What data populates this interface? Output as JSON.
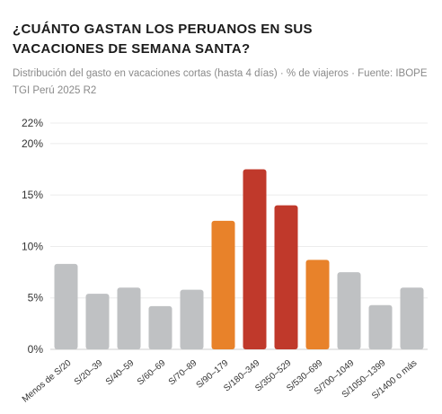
{
  "chart_data": {
    "type": "bar",
    "title": "¿CUÁNTO GASTAN LOS PERUANOS EN SUS VACACIONES DE SEMANA SANTA?",
    "subtitle": "Distribución del gasto en vacaciones cortas (hasta 4 días) · % de viajeros · Fuente: IBOPE TGI Perú 2025 R2",
    "categories": [
      "Menos de S/20",
      "S/20–39",
      "S/40–59",
      "S/60–69",
      "S/70–89",
      "S/90–179",
      "S/180–349",
      "S/350–529",
      "S/530–699",
      "S/700–1049",
      "S/1050–1399",
      "S/1400 o más"
    ],
    "values": [
      8.3,
      5.4,
      6.0,
      4.2,
      5.8,
      12.5,
      17.5,
      14.0,
      8.7,
      7.5,
      4.3,
      6.0
    ],
    "colors": [
      "#bfc1c3",
      "#bfc1c3",
      "#bfc1c3",
      "#bfc1c3",
      "#bfc1c3",
      "#e8822a",
      "#c0392b",
      "#c0392b",
      "#e8822a",
      "#bfc1c3",
      "#bfc1c3",
      "#bfc1c3"
    ],
    "yticks": [
      0,
      5,
      10,
      15,
      20,
      22
    ],
    "ytick_labels": [
      "0%",
      "5%",
      "10%",
      "15%",
      "20%",
      "22%"
    ],
    "ylim": [
      0,
      22
    ],
    "grid": true
  }
}
